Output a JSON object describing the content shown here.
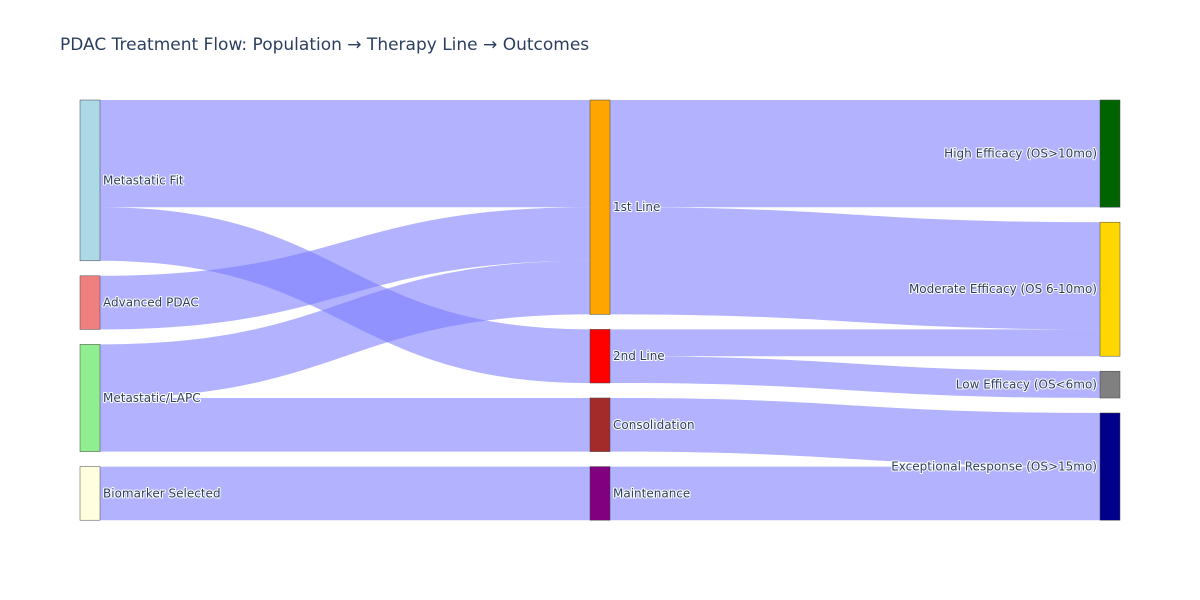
{
  "chart_data": {
    "type": "sankey",
    "title": "PDAC Treatment Flow: Population → Therapy Line → Outcomes",
    "nodes": [
      {
        "id": "metastatic_fit",
        "label": "Metastatic Fit",
        "column": 0,
        "color": "#add8e6"
      },
      {
        "id": "advanced_pdac",
        "label": "Advanced PDAC",
        "column": 0,
        "color": "#f08080"
      },
      {
        "id": "metastatic_lapc",
        "label": "Metastatic/LAPC",
        "column": 0,
        "color": "#90ee90"
      },
      {
        "id": "biomarker",
        "label": "Biomarker Selected",
        "column": 0,
        "color": "#ffffe0"
      },
      {
        "id": "first_line",
        "label": "1st Line",
        "column": 1,
        "color": "#ffa500"
      },
      {
        "id": "second_line",
        "label": "2nd Line",
        "column": 1,
        "color": "#ff0000"
      },
      {
        "id": "consolidation",
        "label": "Consolidation",
        "column": 1,
        "color": "#a52a2a"
      },
      {
        "id": "maintenance",
        "label": "Maintenance",
        "column": 1,
        "color": "#800080"
      },
      {
        "id": "high",
        "label": "High Efficacy (OS>10mo)",
        "column": 2,
        "color": "#006400"
      },
      {
        "id": "moderate",
        "label": "Moderate Efficacy (OS 6-10mo)",
        "column": 2,
        "color": "#ffd700"
      },
      {
        "id": "low",
        "label": "Low Efficacy (OS<6mo)",
        "column": 2,
        "color": "#808080"
      },
      {
        "id": "exceptional",
        "label": "Exceptional Response (OS>15mo)",
        "column": 2,
        "color": "#00008b"
      }
    ],
    "links": [
      {
        "source": "metastatic_fit",
        "target": "first_line",
        "value": 20
      },
      {
        "source": "metastatic_fit",
        "target": "second_line",
        "value": 10
      },
      {
        "source": "advanced_pdac",
        "target": "first_line",
        "value": 10
      },
      {
        "source": "metastatic_lapc",
        "target": "first_line",
        "value": 10
      },
      {
        "source": "metastatic_lapc",
        "target": "consolidation",
        "value": 10
      },
      {
        "source": "biomarker",
        "target": "maintenance",
        "value": 10
      },
      {
        "source": "first_line",
        "target": "high",
        "value": 20
      },
      {
        "source": "first_line",
        "target": "moderate",
        "value": 20
      },
      {
        "source": "second_line",
        "target": "moderate",
        "value": 5
      },
      {
        "source": "second_line",
        "target": "low",
        "value": 5
      },
      {
        "source": "consolidation",
        "target": "exceptional",
        "value": 10
      },
      {
        "source": "maintenance",
        "target": "exceptional",
        "value": 10
      }
    ],
    "link_color": "#7b7bff"
  }
}
